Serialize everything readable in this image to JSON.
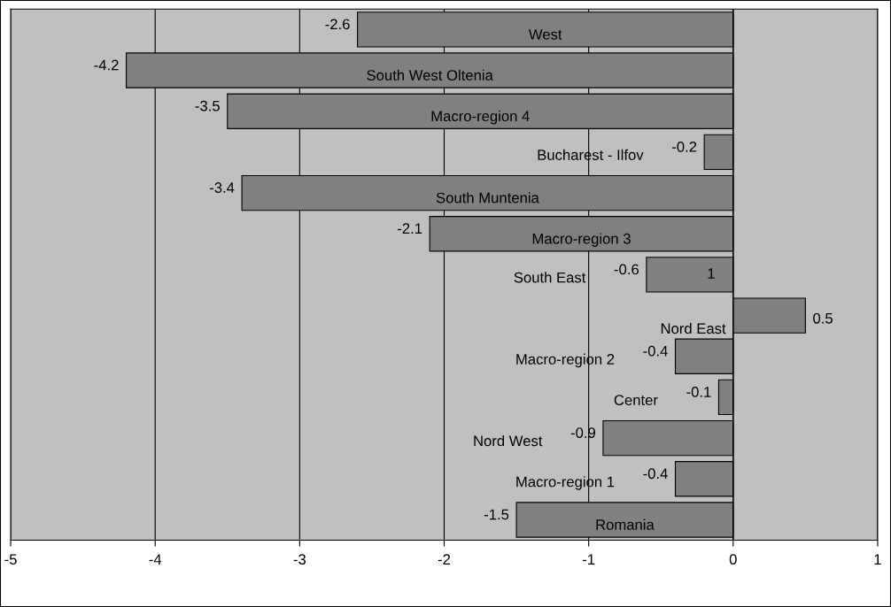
{
  "chart_data": {
    "type": "bar",
    "orientation": "horizontal",
    "categories": [
      "West",
      "South West Oltenia",
      "Macro-region 4",
      "Bucharest - Ilfov",
      "South Muntenia",
      "Macro-region 3",
      "South East",
      "Nord East",
      "Macro-region 2",
      "Center",
      "Nord West",
      "Macro-region 1",
      "Romania"
    ],
    "values": [
      -2.6,
      -4.2,
      -3.5,
      -0.2,
      -3.4,
      -2.1,
      -0.6,
      0.5,
      -0.4,
      -0.1,
      -0.9,
      -0.4,
      -1.5
    ],
    "color": "#808080",
    "data_labels": true,
    "xlim": [
      -5,
      1
    ],
    "xticks": [
      -5,
      -4,
      -3,
      -2,
      -1,
      0,
      1
    ],
    "grid": "x",
    "annotations": [
      "1"
    ]
  }
}
